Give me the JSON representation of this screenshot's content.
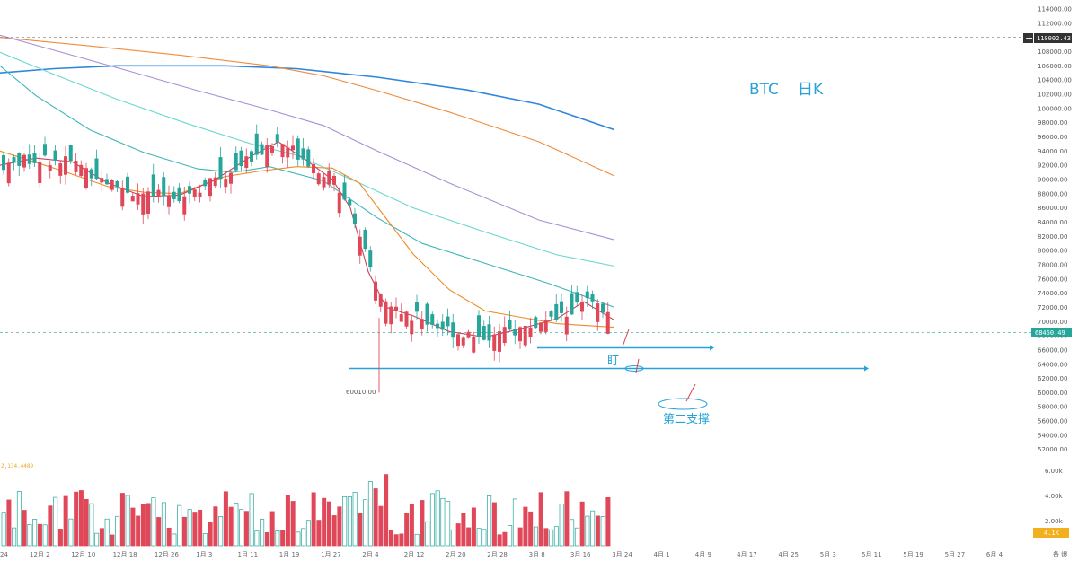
{
  "chart_data": {
    "type": "candlestick",
    "annotations": {
      "symbol": "BTC",
      "timeframe": "日K",
      "mark_1": "盯",
      "mark_2": "第二支撑",
      "low_label": "60010.00",
      "last_price": "68460.49",
      "ref_price": "110002.43",
      "volume_value": "2,134.4489",
      "volume_tag": "4.1K"
    },
    "y_axis": {
      "ylim": [
        50000,
        115000
      ],
      "ticks": [
        52000,
        54000,
        56000,
        58000,
        60000,
        62000,
        64000,
        66000,
        68000,
        70000,
        72000,
        74000,
        76000,
        78000,
        80000,
        82000,
        84000,
        86000,
        88000,
        90000,
        92000,
        94000,
        96000,
        98000,
        100000,
        102000,
        104000,
        106000,
        108000,
        110000,
        112000,
        114000
      ]
    },
    "volume_axis": {
      "ticks": [
        "6.00k",
        "4.00k",
        "2.00k"
      ]
    },
    "x_axis": {
      "labels": [
        "24",
        "12月 2",
        "12月 10",
        "12月 18",
        "12月 26",
        "1月 3",
        "1月 11",
        "1月 19",
        "1月 27",
        "2月 4",
        "2月 12",
        "2月 20",
        "2月 28",
        "3月 8",
        "3月 16",
        "3月 24",
        "4月 1",
        "4月 9",
        "4月 17",
        "4月 25",
        "5月 3",
        "5月 11",
        "5月 19",
        "5月 27",
        "6月 4"
      ],
      "corner": "备 爆"
    },
    "support_levels": [
      {
        "label": "盯",
        "price": 66300
      },
      {
        "label": "第二支撑",
        "price": 63400
      }
    ],
    "moving_averages": [
      {
        "color": "#2e86de",
        "points": [
          [
            0,
            105000
          ],
          [
            60,
            105600
          ],
          [
            130,
            106000
          ],
          [
            250,
            106000
          ],
          [
            330,
            105600
          ],
          [
            420,
            104400
          ],
          [
            520,
            102600
          ],
          [
            600,
            100600
          ],
          [
            684,
            97000
          ]
        ]
      },
      {
        "color": "#ef8b3a",
        "points": [
          [
            0,
            110000
          ],
          [
            100,
            108800
          ],
          [
            200,
            107500
          ],
          [
            300,
            106000
          ],
          [
            360,
            104600
          ],
          [
            420,
            102500
          ],
          [
            500,
            99500
          ],
          [
            600,
            95300
          ],
          [
            684,
            90500
          ]
        ]
      },
      {
        "color": "#a88fd6",
        "points": [
          [
            0,
            110300
          ],
          [
            60,
            108200
          ],
          [
            140,
            105400
          ],
          [
            220,
            102500
          ],
          [
            300,
            99800
          ],
          [
            360,
            97600
          ],
          [
            420,
            94000
          ],
          [
            500,
            89500
          ],
          [
            600,
            84300
          ],
          [
            684,
            81500
          ]
        ]
      },
      {
        "color": "#69d6cf",
        "points": [
          [
            0,
            107900
          ],
          [
            60,
            104800
          ],
          [
            130,
            101300
          ],
          [
            210,
            97800
          ],
          [
            280,
            95000
          ],
          [
            330,
            93400
          ],
          [
            400,
            89500
          ],
          [
            460,
            86000
          ],
          [
            540,
            82600
          ],
          [
            620,
            79400
          ],
          [
            684,
            77800
          ]
        ]
      },
      {
        "color": "#3fb5b8",
        "points": [
          [
            0,
            106000
          ],
          [
            40,
            101800
          ],
          [
            100,
            97000
          ],
          [
            160,
            93800
          ],
          [
            220,
            91500
          ],
          [
            260,
            91000
          ],
          [
            300,
            91800
          ],
          [
            360,
            89800
          ],
          [
            420,
            84600
          ],
          [
            470,
            81000
          ],
          [
            540,
            78200
          ],
          [
            610,
            75400
          ],
          [
            650,
            73600
          ],
          [
            684,
            72000
          ]
        ]
      },
      {
        "color": "#f08a24",
        "points": [
          [
            0,
            94000
          ],
          [
            30,
            92800
          ],
          [
            70,
            91200
          ],
          [
            120,
            89000
          ],
          [
            160,
            88200
          ],
          [
            200,
            88000
          ],
          [
            250,
            90400
          ],
          [
            290,
            91200
          ],
          [
            330,
            91800
          ],
          [
            370,
            91600
          ],
          [
            400,
            89500
          ],
          [
            430,
            84500
          ],
          [
            460,
            79500
          ],
          [
            500,
            74500
          ],
          [
            540,
            71500
          ],
          [
            580,
            70600
          ],
          [
            620,
            69700
          ],
          [
            684,
            69200
          ]
        ]
      },
      {
        "color": "#c7425f",
        "points": [
          [
            0,
            92000
          ],
          [
            40,
            93000
          ],
          [
            80,
            92500
          ],
          [
            120,
            89500
          ],
          [
            160,
            87600
          ],
          [
            200,
            87800
          ],
          [
            240,
            90000
          ],
          [
            280,
            93300
          ],
          [
            310,
            95300
          ],
          [
            340,
            92800
          ],
          [
            370,
            90000
          ],
          [
            390,
            86000
          ],
          [
            410,
            77000
          ],
          [
            430,
            72000
          ],
          [
            460,
            70800
          ],
          [
            500,
            68600
          ],
          [
            540,
            67800
          ],
          [
            580,
            69000
          ],
          [
            620,
            70400
          ],
          [
            650,
            72800
          ],
          [
            684,
            70200
          ]
        ]
      }
    ]
  }
}
